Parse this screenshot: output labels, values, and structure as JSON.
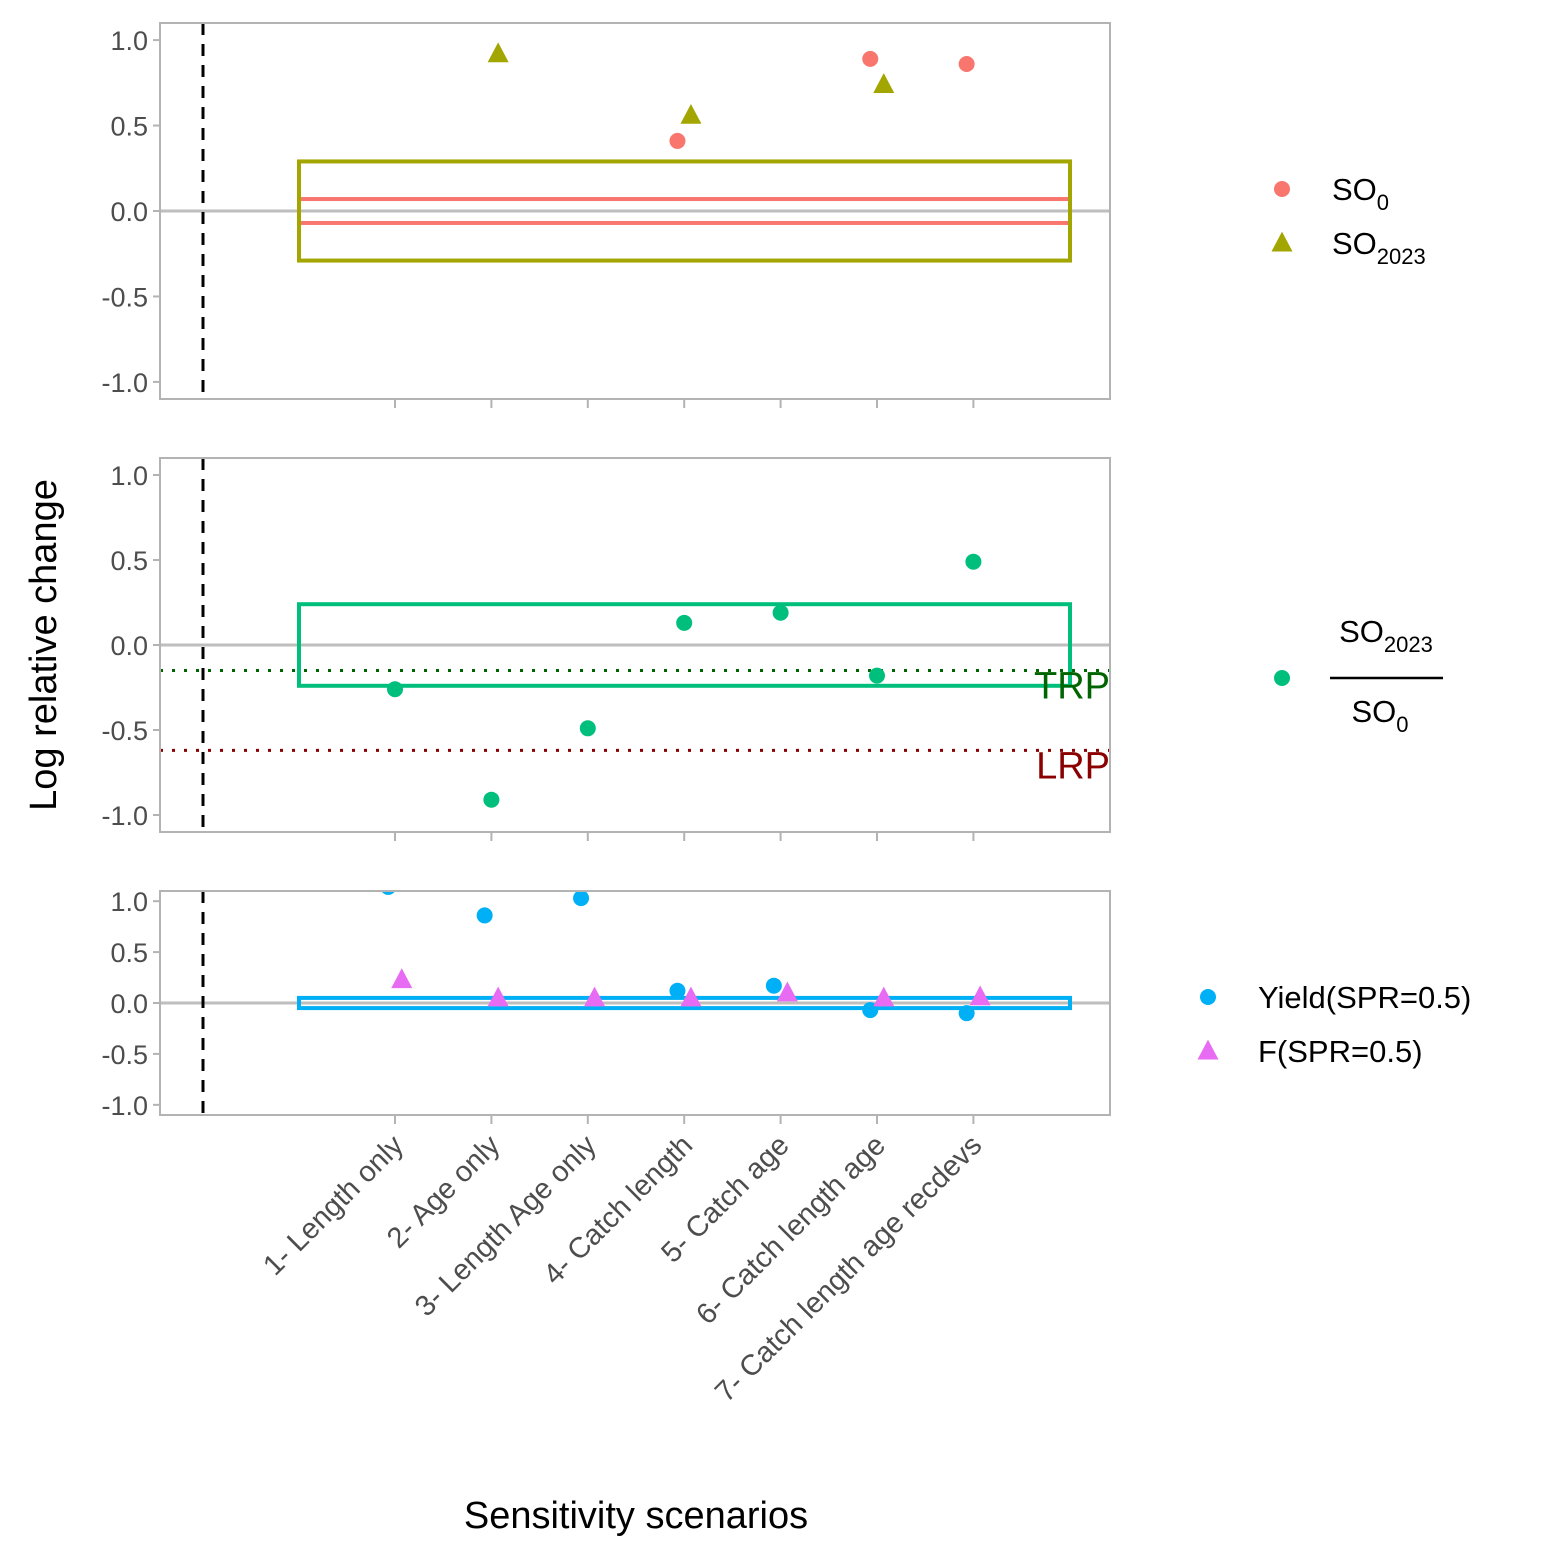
{
  "chart_data": {
    "type": "scatter",
    "xlabel": "Sensitivity scenarios",
    "ylabel": "Log relative change",
    "categories": [
      "1- Length only",
      "2- Age only",
      "3- Length Age only",
      "4- Catch length",
      "5- Catch age",
      "6- Catch length age",
      "7- Catch length age recdevs"
    ],
    "y_ticks": [
      "-1.0",
      "-0.5",
      "0.0",
      "0.5",
      "1.0"
    ],
    "colors": {
      "so0": "#F8766D",
      "so2023": "#A3A500",
      "ratio": "#00BF7D",
      "yield": "#00B0F6",
      "f": "#E76BF3",
      "trp": "#006400",
      "lrp": "#8B0000"
    },
    "panels": [
      {
        "name": "spawning-output",
        "ylim": [
          -1.1,
          1.1
        ],
        "legend": [
          {
            "base": "SO",
            "sub": "0",
            "shape": "circle",
            "color": "#F8766D"
          },
          {
            "base": "SO",
            "sub": "2023",
            "shape": "triangle",
            "color": "#A3A500"
          }
        ],
        "bands": [
          {
            "lower": -0.07,
            "upper": 0.07,
            "color": "#F8766D"
          },
          {
            "lower": -0.29,
            "upper": 0.29,
            "color": "#A3A500"
          }
        ],
        "series": [
          {
            "shape": "circle",
            "color": "#F8766D",
            "offset": -0.07,
            "values": [
              null,
              null,
              null,
              0.41,
              null,
              0.89,
              0.86
            ]
          },
          {
            "shape": "triangle",
            "color": "#A3A500",
            "offset": 0.07,
            "values": [
              null,
              0.92,
              null,
              0.56,
              null,
              0.74,
              null
            ]
          }
        ]
      },
      {
        "name": "relative-spawning-output",
        "ylim": [
          -1.1,
          1.1
        ],
        "legend_fraction": {
          "num_base": "SO",
          "num_sub": "2023",
          "den_base": "SO",
          "den_sub": "0",
          "color": "#00BF7D"
        },
        "bands": [
          {
            "lower": -0.24,
            "upper": 0.24,
            "color": "#00BF7D"
          }
        ],
        "reference_lines": [
          {
            "label": "TRP",
            "value": -0.15,
            "color": "#006400"
          },
          {
            "label": "LRP",
            "value": -0.62,
            "color": "#8B0000"
          }
        ],
        "series": [
          {
            "shape": "circle",
            "color": "#00BF7D",
            "offset": 0,
            "values": [
              -0.26,
              -0.91,
              -0.49,
              0.13,
              0.19,
              -0.18,
              0.49
            ]
          }
        ]
      },
      {
        "name": "yield-and-f",
        "ylim": [
          -1.1,
          1.1
        ],
        "legend": [
          {
            "base": "Yield(SPR=0.5)",
            "sub": "",
            "shape": "circle",
            "color": "#00B0F6"
          },
          {
            "base": "F(SPR=0.5)",
            "sub": "",
            "shape": "triangle",
            "color": "#E76BF3"
          }
        ],
        "bands": [
          {
            "lower": -0.05,
            "upper": 0.05,
            "color": "#00B0F6"
          }
        ],
        "series": [
          {
            "shape": "circle",
            "color": "#00B0F6",
            "offset": -0.07,
            "values": [
              1.14,
              0.86,
              1.03,
              0.12,
              0.17,
              -0.07,
              -0.1
            ]
          },
          {
            "shape": "triangle",
            "color": "#E76BF3",
            "offset": 0.07,
            "values": [
              0.23,
              0.05,
              0.05,
              0.05,
              0.1,
              0.05,
              0.06
            ]
          }
        ]
      }
    ]
  }
}
